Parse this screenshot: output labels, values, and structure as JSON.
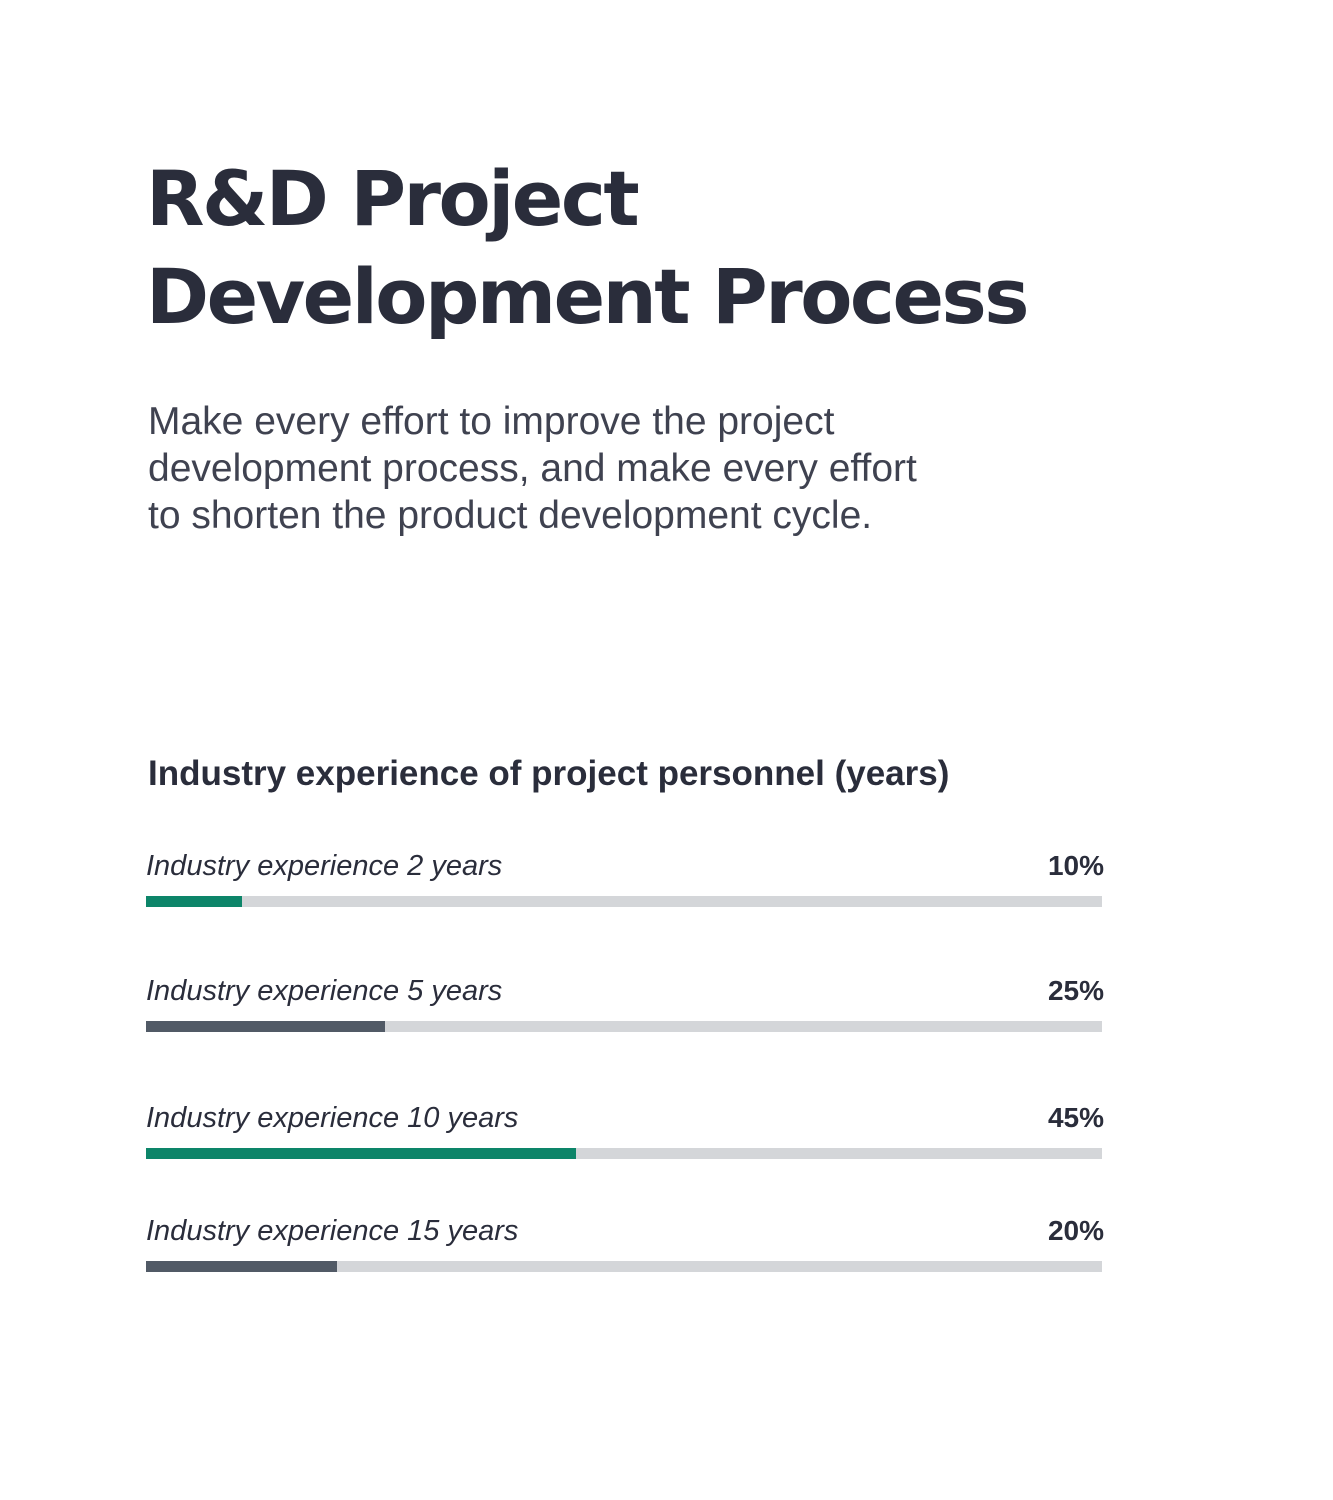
{
  "header": {
    "title_line1": "R&D Project",
    "title_line2": "Development Process"
  },
  "intro": {
    "line1": "Make every effort to improve the project",
    "line2": "development process, and make every effort",
    "line3": "to shorten the product development cycle."
  },
  "section": {
    "heading": "Industry experience of project personnel (years)"
  },
  "colors": {
    "green": "#0d8569",
    "slate": "#515a66",
    "track": "#d4d6d9"
  },
  "bars": [
    {
      "label": "Industry experience 2 years",
      "value_text": "10%",
      "percent": 10,
      "color": "#0d8569"
    },
    {
      "label": "Industry experience 5 years",
      "value_text": "25%",
      "percent": 25,
      "color": "#515a66"
    },
    {
      "label": "Industry experience 10 years",
      "value_text": "45%",
      "percent": 45,
      "color": "#0d8569"
    },
    {
      "label": "Industry experience 15 years",
      "value_text": "20%",
      "percent": 20,
      "color": "#515a66"
    }
  ]
}
